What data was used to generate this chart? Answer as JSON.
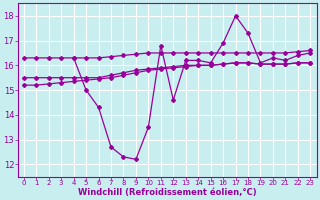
{
  "bg_color": "#c8eef0",
  "grid_color": "#ffffff",
  "line_color": "#990099",
  "xlabel": "Windchill (Refroidissement éolien,°C)",
  "xlabel_color": "#990099",
  "ylim": [
    11.5,
    18.5
  ],
  "xlim": [
    -0.5,
    23.5
  ],
  "yticks": [
    12,
    13,
    14,
    15,
    16,
    17,
    18
  ],
  "xticks": [
    0,
    1,
    2,
    3,
    4,
    5,
    6,
    7,
    8,
    9,
    10,
    11,
    12,
    13,
    14,
    15,
    16,
    17,
    18,
    19,
    20,
    21,
    22,
    23
  ],
  "line1_x": [
    0,
    1,
    2,
    3,
    4,
    5,
    6,
    7,
    8,
    9,
    10,
    11,
    12,
    13,
    14,
    15,
    16,
    17,
    18,
    19,
    20,
    21,
    22,
    23
  ],
  "line1_y": [
    16.3,
    16.3,
    16.3,
    16.3,
    16.3,
    16.3,
    16.3,
    16.35,
    16.4,
    16.45,
    16.5,
    16.5,
    16.5,
    16.5,
    16.5,
    16.5,
    16.5,
    16.5,
    16.5,
    16.5,
    16.5,
    16.5,
    16.55,
    16.6
  ],
  "line2_x": [
    0,
    1,
    2,
    3,
    4,
    5,
    6,
    7,
    8,
    9,
    10,
    11,
    12,
    13,
    14,
    15,
    16,
    17,
    18,
    19,
    20,
    21,
    22,
    23
  ],
  "line2_y": [
    15.5,
    15.5,
    15.5,
    15.5,
    15.5,
    15.5,
    15.5,
    15.6,
    15.7,
    15.8,
    15.85,
    15.9,
    15.95,
    16.0,
    16.0,
    16.0,
    16.05,
    16.1,
    16.1,
    16.05,
    16.05,
    16.05,
    16.1,
    16.1
  ],
  "line3_x": [
    0,
    1,
    2,
    3,
    4,
    5,
    6,
    7,
    8,
    9,
    10,
    11,
    12,
    13,
    14,
    15,
    16,
    17,
    18,
    19,
    20,
    21,
    22,
    23
  ],
  "line3_y": [
    15.2,
    15.2,
    15.25,
    15.3,
    15.35,
    15.4,
    15.45,
    15.5,
    15.6,
    15.7,
    15.8,
    15.85,
    15.9,
    15.95,
    16.0,
    16.0,
    16.05,
    16.1,
    16.1,
    16.05,
    16.05,
    16.05,
    16.1,
    16.1
  ],
  "line4_x": [
    4,
    5,
    6,
    7,
    8,
    9,
    10,
    11,
    12,
    13,
    14,
    15,
    16,
    17,
    18,
    19,
    20,
    21,
    22,
    23
  ],
  "line4_y": [
    16.3,
    15.0,
    14.3,
    12.7,
    12.3,
    12.2,
    13.5,
    16.8,
    14.6,
    16.2,
    16.2,
    16.1,
    16.9,
    18.0,
    17.3,
    16.1,
    16.3,
    16.2,
    16.4,
    16.5
  ]
}
